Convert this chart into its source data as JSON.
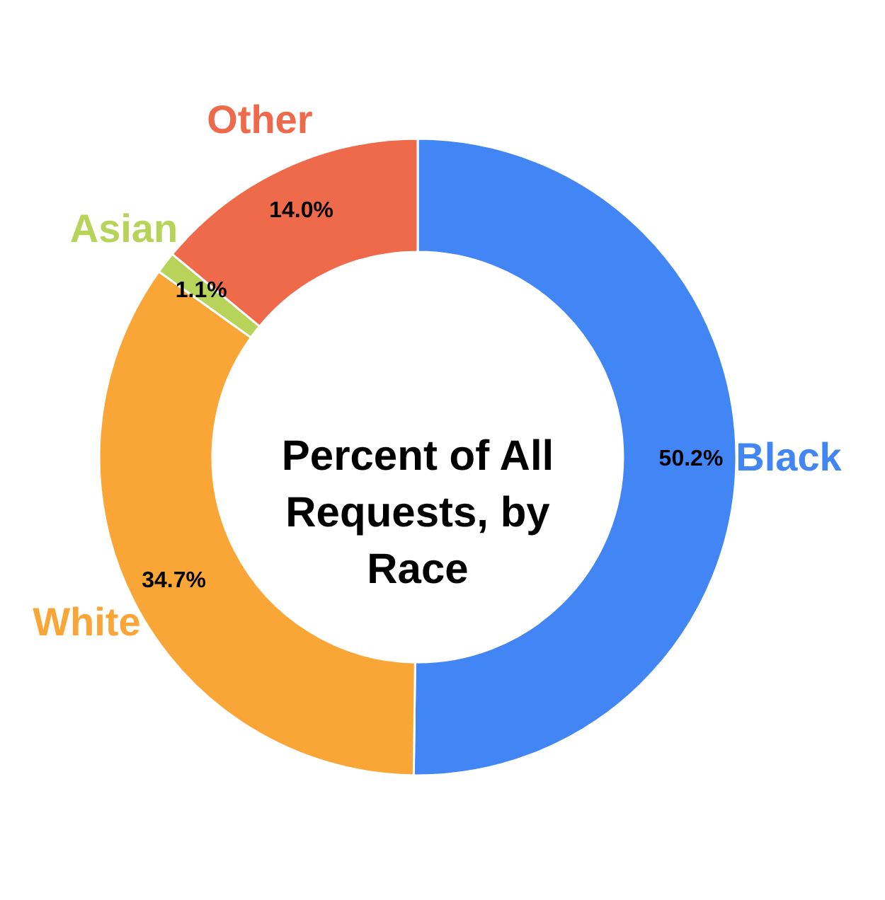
{
  "chart_data": {
    "type": "donut",
    "title": "Percent of All Requests, by Race",
    "categories": [
      "Black",
      "White",
      "Asian",
      "Other"
    ],
    "values": [
      50.2,
      34.7,
      1.1,
      14.0
    ],
    "colors": [
      "#4285f4",
      "#f9a637",
      "#b7d35a",
      "#ef6a4b"
    ],
    "value_labels": [
      "50.2%",
      "34.7%",
      "1.1%",
      "14.0%"
    ],
    "legend": false
  }
}
